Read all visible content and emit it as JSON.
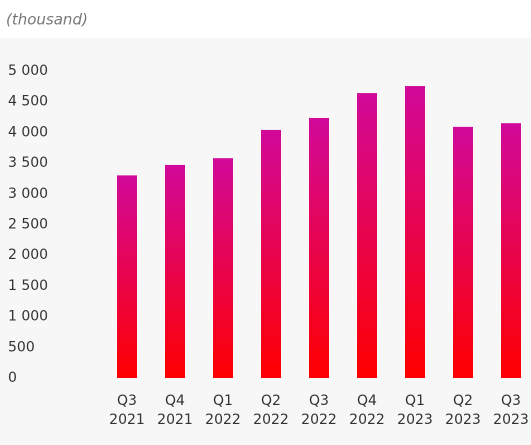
{
  "chart_data": {
    "type": "bar",
    "subtitle": "(thousand)",
    "categories": [
      "Q3 2021",
      "Q4 2021",
      "Q1 2022",
      "Q2 2022",
      "Q3 2022",
      "Q4 2022",
      "Q1 2023",
      "Q2 2023",
      "Q3 2023"
    ],
    "values": [
      3300,
      3470,
      3580,
      4040,
      4235,
      4640,
      4755,
      4090,
      4150
    ],
    "color_top": "#d1099a",
    "color_bottom": "#ff0000",
    "ylim": [
      0,
      5000
    ],
    "yticks": [
      0,
      500,
      {
        "value": 1000,
        "label": "1 000"
      },
      {
        "value": 1500,
        "label": "1 500"
      },
      {
        "value": 2000,
        "label": "2 000"
      },
      {
        "value": 2500,
        "label": "2 500"
      },
      {
        "value": 3000,
        "label": "3 000"
      },
      {
        "value": 3500,
        "label": "3 500"
      },
      {
        "value": 4000,
        "label": "4 000"
      },
      {
        "value": 4500,
        "label": "4 500"
      },
      {
        "value": 5000,
        "label": "5 000"
      }
    ]
  }
}
